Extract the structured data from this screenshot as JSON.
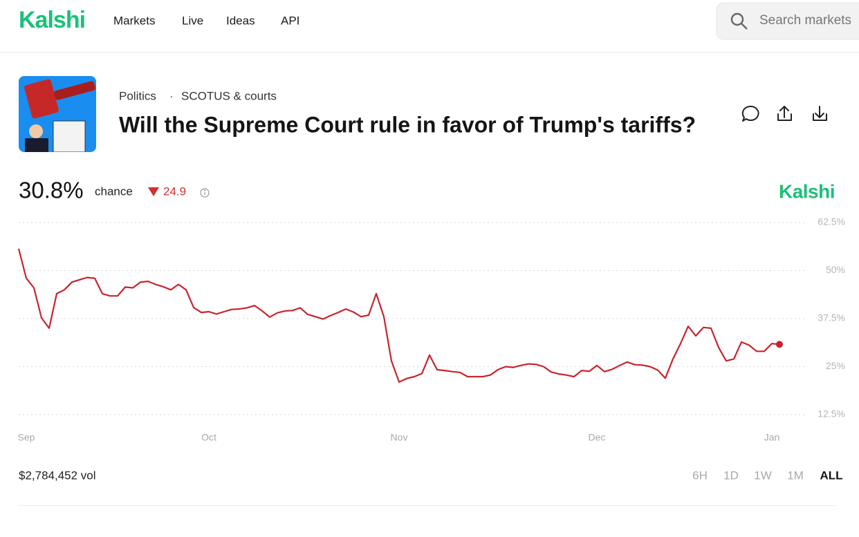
{
  "header": {
    "logo": "Kalshi",
    "nav": [
      "Markets",
      "Live",
      "Ideas",
      "API"
    ],
    "search_placeholder": "Search markets"
  },
  "market": {
    "category": "Politics",
    "separator": "·",
    "subcategory": "SCOTUS & courts",
    "title": "Will the Supreme Court rule in favor of Trump's tariffs?",
    "chance": "30.8%",
    "chance_label": "chance",
    "change": "24.9",
    "volume": "$2,784,452 vol",
    "ranges": [
      "6H",
      "1D",
      "1W",
      "1M",
      "ALL"
    ],
    "active_range": "ALL"
  },
  "chart_data": {
    "type": "line",
    "watermark": "Kalshi",
    "color": "#c8232c",
    "grid": true,
    "categories": [
      null,
      "Sep",
      null,
      null,
      null,
      null,
      null,
      null,
      null,
      null,
      null,
      null,
      null,
      null,
      null,
      null,
      null,
      null,
      null,
      null,
      null,
      null,
      null,
      null,
      null,
      "Oct",
      null,
      null,
      null,
      null,
      null,
      null,
      null,
      null,
      null,
      null,
      null,
      null,
      null,
      null,
      null,
      null,
      null,
      null,
      null,
      null,
      null,
      null,
      null,
      null,
      "Nov",
      null,
      null,
      null,
      null,
      null,
      null,
      null,
      null,
      null,
      null,
      null,
      null,
      null,
      null,
      null,
      null,
      null,
      null,
      null,
      null,
      null,
      null,
      null,
      null,
      null,
      "Dec",
      null,
      null,
      null,
      null,
      null,
      null,
      null,
      null,
      null,
      null,
      null,
      null,
      null,
      null,
      null,
      null,
      null,
      null,
      null,
      null,
      null,
      null,
      "Jan",
      null
    ],
    "values": [
      55.7,
      48,
      45.5,
      37.7,
      35,
      44,
      45,
      47,
      47.6,
      48.2,
      48,
      44,
      43.4,
      43.4,
      45.7,
      45.5,
      47,
      47.2,
      46.4,
      45.8,
      45,
      46.4,
      45,
      40.4,
      39.1,
      39.3,
      38.7,
      39.3,
      39.9,
      40,
      40.3,
      40.9,
      39.5,
      37.9,
      39,
      39.5,
      39.6,
      40.3,
      38.6,
      38,
      37.4,
      38.3,
      39.1,
      40,
      39.2,
      38,
      38.4,
      44,
      38,
      26.5,
      21,
      21.9,
      22.4,
      23.2,
      28,
      24.2,
      24,
      23.7,
      23.5,
      22.4,
      22.4,
      22.4,
      22.8,
      24.2,
      25,
      24.8,
      25.3,
      25.7,
      25.6,
      25,
      23.6,
      23.1,
      22.8,
      22.4,
      24,
      23.8,
      25.3,
      23.7,
      24.3,
      25.3,
      26.2,
      25.5,
      25.4,
      25,
      24.1,
      22,
      27,
      31,
      35.5,
      33,
      35.2,
      35,
      30,
      26.5,
      27,
      31.4,
      30.6,
      29,
      29,
      31,
      30.8
    ],
    "ylim": [
      12.5,
      62.5
    ],
    "yticks": [
      {
        "value": 12.5,
        "label": "12.5%"
      },
      {
        "value": 25,
        "label": "25%"
      },
      {
        "value": 37.5,
        "label": "37.5%"
      },
      {
        "value": 50,
        "label": "50%"
      },
      {
        "value": 62.5,
        "label": "62.5%"
      }
    ]
  }
}
